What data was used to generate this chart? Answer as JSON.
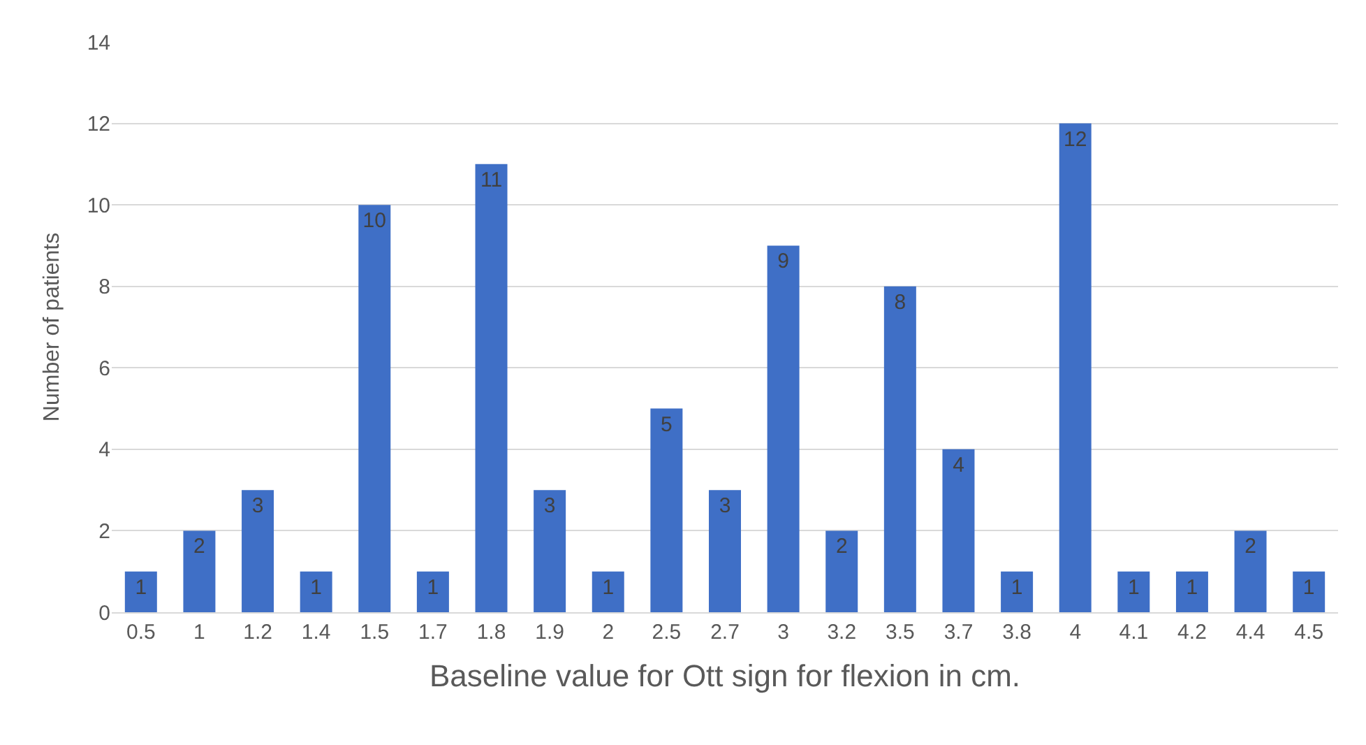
{
  "chart_data": {
    "type": "bar",
    "xlabel": "Baseline value for Ott sign for flexion in cm.",
    "ylabel": "Number of patients",
    "categories": [
      "0.5",
      "1",
      "1.2",
      "1.4",
      "1.5",
      "1.7",
      "1.8",
      "1.9",
      "2",
      "2.5",
      "2.7",
      "3",
      "3.2",
      "3.5",
      "3.7",
      "3.8",
      "4",
      "4.1",
      "4.2",
      "4.4",
      "4.5"
    ],
    "values": [
      1,
      2,
      3,
      1,
      10,
      1,
      11,
      3,
      1,
      5,
      3,
      9,
      2,
      8,
      4,
      1,
      12,
      1,
      1,
      2,
      1
    ],
    "color": "#3f6fc6",
    "ylim": [
      0,
      14
    ],
    "yticks": [
      0,
      2,
      4,
      6,
      8,
      10,
      12,
      14
    ],
    "grid": "y",
    "data_labels": true
  }
}
